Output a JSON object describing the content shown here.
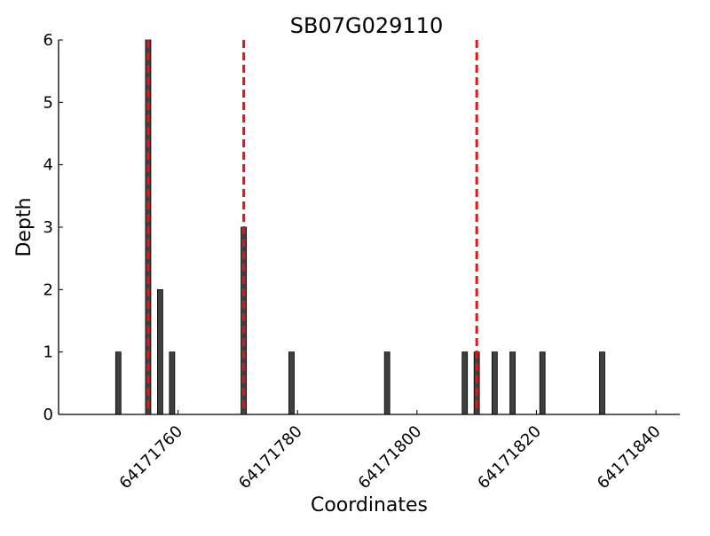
{
  "chart_data": {
    "type": "bar",
    "title": "SB07G029110",
    "xlabel": "Coordinates",
    "ylabel": "Depth",
    "xlim": [
      64171740,
      64171844
    ],
    "ylim": [
      0,
      6
    ],
    "xticks": [
      64171760,
      64171780,
      64171800,
      64171820,
      64171840
    ],
    "xtick_labels": [
      "64171760",
      "64171780",
      "64171800",
      "64171820",
      "64171840"
    ],
    "yticks": [
      0,
      1,
      2,
      3,
      4,
      5,
      6
    ],
    "ytick_labels": [
      "0",
      "1",
      "2",
      "3",
      "4",
      "5",
      "6"
    ],
    "grid": false,
    "bars": {
      "x": [
        64171750,
        64171755,
        64171757,
        64171759,
        64171771,
        64171779,
        64171795,
        64171808,
        64171810,
        64171813,
        64171816,
        64171821,
        64171831
      ],
      "values": [
        1,
        6,
        2,
        1,
        3,
        1,
        1,
        1,
        1,
        1,
        1,
        1,
        1
      ],
      "color": "#3f3f3f"
    },
    "markers": {
      "x": [
        64171755,
        64171771,
        64171810
      ],
      "color": "#ee1111",
      "style": "dashed"
    }
  }
}
